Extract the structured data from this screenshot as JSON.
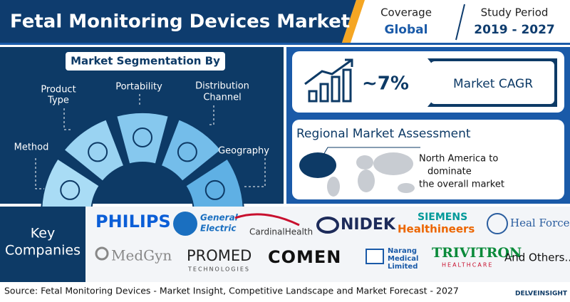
{
  "header": {
    "title": "Fetal Monitoring Devices Market",
    "coverage_label": "Coverage",
    "coverage_value": "Global",
    "period_label": "Study Period",
    "period_value": "2019 - 2027"
  },
  "segmentation": {
    "title": "Market Segmentation By",
    "segments": [
      {
        "label": [
          "Method"
        ]
      },
      {
        "label": [
          "Product",
          "Type"
        ]
      },
      {
        "label": [
          "Portability"
        ]
      },
      {
        "label": [
          "Distribution",
          "Channel"
        ]
      },
      {
        "label": [
          "Geography"
        ]
      }
    ]
  },
  "cagr": {
    "value": "~7%",
    "label": "Market CAGR"
  },
  "regional": {
    "title": "Regional Market Assessment",
    "text": [
      "North America to",
      "dominate",
      "the overall market"
    ]
  },
  "companies": {
    "title": [
      "Key",
      "Companies"
    ],
    "list": [
      "PHILIPS",
      "General",
      "Electric",
      "CardinalHealth",
      "NIDEK",
      "SIEMENS",
      "Healthineers",
      "Heal Force",
      "MedGyn",
      "PROMED",
      "TECHNOLOGIES",
      "COMEN",
      "Narang",
      "Medical",
      "Limited",
      "TRIVITRON",
      "HEALTHCARE",
      "And Others..."
    ]
  },
  "footer": {
    "source": "Source: Fetal Monitoring Devices - Market Insight, Competitive Landscape and Market Forecast - 2027",
    "brand": "DELVEINSIGHT"
  }
}
